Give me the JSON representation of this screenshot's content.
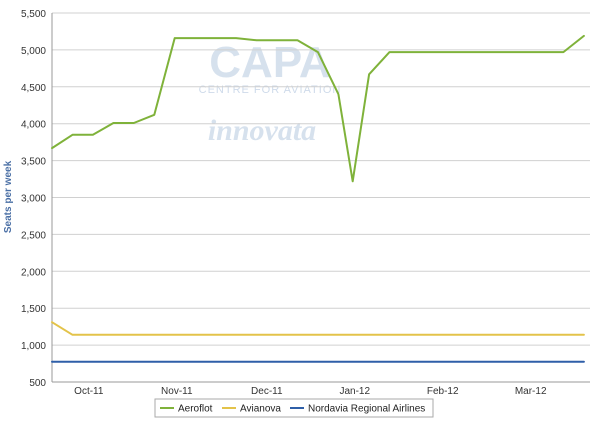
{
  "watermarks": {
    "capa": "CAPA",
    "capa_sub": "CENTRE FOR AVIATION",
    "innovata": "innovata"
  },
  "chart_data": {
    "type": "line",
    "title": "",
    "xlabel": "",
    "ylabel": "Seats per week",
    "ylim": [
      500,
      5500
    ],
    "yticks": [
      500,
      1000,
      1500,
      2000,
      2500,
      3000,
      3500,
      4000,
      4500,
      5000,
      5500
    ],
    "ytick_labels": [
      "500",
      "1,000",
      "1,500",
      "2,000",
      "2,500",
      "3,000",
      "3,500",
      "4,000",
      "4,500",
      "5,000",
      "5,500"
    ],
    "x_range": [
      0,
      26.3
    ],
    "xticks": [
      {
        "label": "Oct-11",
        "pos": 1.8
      },
      {
        "label": "Nov-11",
        "pos": 6.1
      },
      {
        "label": "Dec-11",
        "pos": 10.5
      },
      {
        "label": "Jan-12",
        "pos": 14.8
      },
      {
        "label": "Feb-12",
        "pos": 19.1
      },
      {
        "label": "Mar-12",
        "pos": 23.4
      }
    ],
    "grid": true,
    "legend_position": "bottom",
    "series": [
      {
        "name": "Aeroflot",
        "color": "#7fb23a",
        "x": [
          0,
          1,
          2,
          3,
          4,
          5,
          6,
          7,
          8,
          9,
          10,
          11,
          12,
          13,
          14,
          14.7,
          15.5,
          16.5,
          17,
          18,
          19,
          20,
          21,
          22,
          23,
          24,
          25,
          26
        ],
        "values": [
          3670,
          3850,
          3850,
          4010,
          4010,
          4120,
          5160,
          5160,
          5160,
          5160,
          5130,
          5130,
          5130,
          4970,
          4400,
          3220,
          4670,
          4970,
          4970,
          4970,
          4970,
          4970,
          4970,
          4970,
          4970,
          4970,
          4970,
          5190
        ]
      },
      {
        "name": "Avianova",
        "color": "#e3c34a",
        "x": [
          0,
          1,
          26
        ],
        "values": [
          1310,
          1140,
          1140
        ]
      },
      {
        "name": "Nordavia Regional Airlines",
        "color": "#2f5fa8",
        "x": [
          0,
          26
        ],
        "values": [
          775,
          775
        ]
      }
    ]
  }
}
